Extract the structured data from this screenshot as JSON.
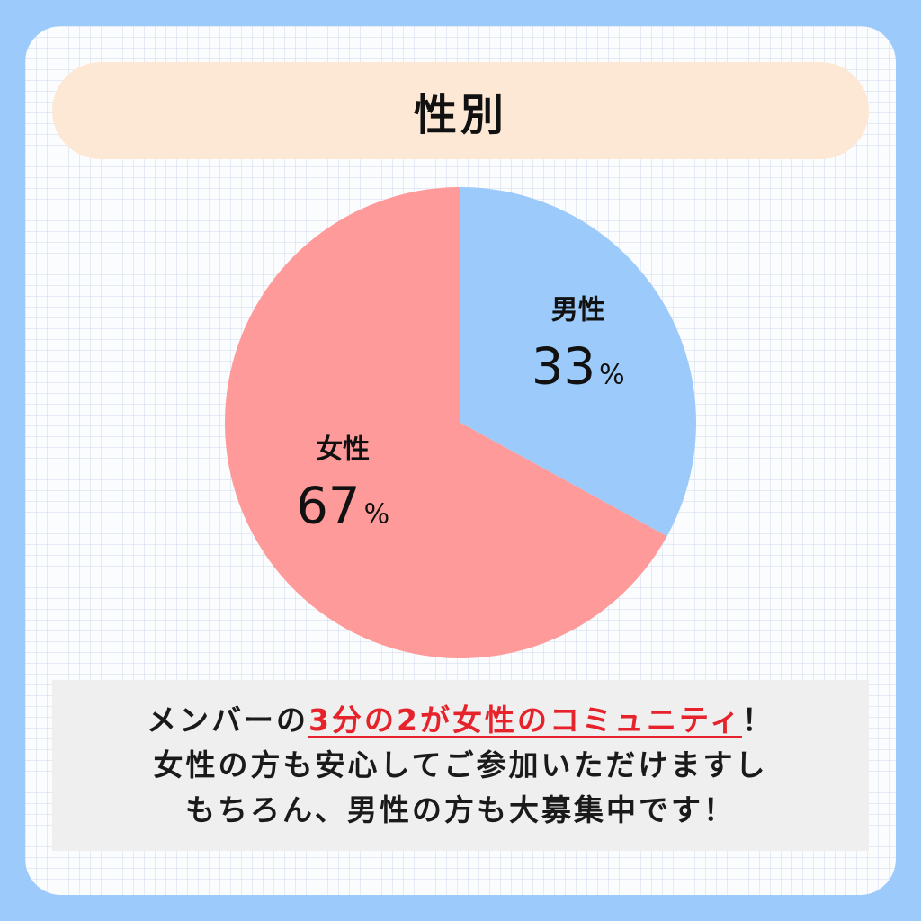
{
  "title": "性別",
  "colors": {
    "background": "#9ccbfb",
    "title_bar": "#fde8d5",
    "male": "#9ccbfb",
    "female": "#fe9a9a",
    "highlight": "#e6232b"
  },
  "chart_data": {
    "type": "pie",
    "title": "性別",
    "slices": [
      {
        "label": "男性",
        "value": 33,
        "value_label": "33",
        "unit": "%",
        "color": "#9ccbfb"
      },
      {
        "label": "女性",
        "value": 67,
        "value_label": "67",
        "unit": "%",
        "color": "#fe9a9a"
      }
    ],
    "start_angle": "12 o'clock",
    "direction": "clockwise"
  },
  "note": {
    "line1_pre": "メンバーの",
    "line1_highlight": "3分の2が女性のコミュニティ",
    "line1_post": "！",
    "line2": "女性の方も安心してご参加いただけますし",
    "line3": "もちろん、男性の方も大募集中です！"
  }
}
